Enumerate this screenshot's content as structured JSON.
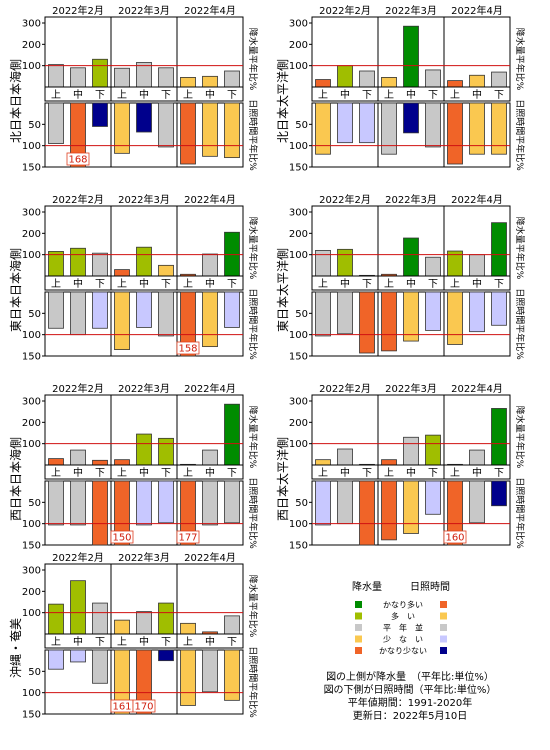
{
  "page": {
    "legend": {
      "header_rain": "降水量",
      "header_sun": "日照時間",
      "rows": [
        {
          "label": "かなり多い",
          "rain_color": "#008c00",
          "sun_color": "#f06428"
        },
        {
          "label": "多　い",
          "rain_color": "#a0be00",
          "sun_color": "#fac850"
        },
        {
          "label": "平　年　並",
          "rain_color": "#c8c8c8",
          "sun_color": "#c8c8c8"
        },
        {
          "label": "少　な　い",
          "rain_color": "#fac850",
          "sun_color": "#c8c8ff"
        },
        {
          "label": "かなり少ない",
          "rain_color": "#f06428",
          "sun_color": "#00008c"
        }
      ]
    },
    "notes": [
      "図の上側が降水量　（平年比:単位%）",
      "図の下側が日照時間（平年比:単位%）",
      "平年値期間：1991-2020年",
      "更新日：2022年5月10日"
    ]
  },
  "chart_data": [
    {
      "type": "bar",
      "region": "北日本日本海側",
      "months": [
        "2022年2月",
        "2022年3月",
        "2022年4月"
      ],
      "categories": [
        "上",
        "中",
        "下",
        "上",
        "中",
        "下",
        "上",
        "中",
        "下"
      ],
      "rain_axis_label": "降水量平年比%",
      "sun_axis_label": "日照時間平年比%",
      "rain_ticks": [
        100,
        200,
        300
      ],
      "sun_ticks": [
        50,
        100,
        150
      ],
      "rain_ylim": [
        0,
        300
      ],
      "sun_ylim": [
        0,
        150
      ],
      "normal_line": 100,
      "rain": [
        {
          "value": 105,
          "color": "#c8c8c8"
        },
        {
          "value": 90,
          "color": "#c8c8c8"
        },
        {
          "value": 130,
          "color": "#a0be00"
        },
        {
          "value": 88,
          "color": "#c8c8c8"
        },
        {
          "value": 115,
          "color": "#c8c8c8"
        },
        {
          "value": 90,
          "color": "#c8c8c8"
        },
        {
          "value": 45,
          "color": "#fac850"
        },
        {
          "value": 50,
          "color": "#fac850"
        },
        {
          "value": 75,
          "color": "#c8c8c8"
        }
      ],
      "sun": [
        {
          "value": 95,
          "color": "#c8c8c8"
        },
        {
          "value": 168,
          "color": "#f06428",
          "label": "168"
        },
        {
          "value": 55,
          "color": "#00008c"
        },
        {
          "value": 118,
          "color": "#fac850"
        },
        {
          "value": 68,
          "color": "#00008c"
        },
        {
          "value": 103,
          "color": "#c8c8c8"
        },
        {
          "value": 143,
          "color": "#f06428"
        },
        {
          "value": 125,
          "color": "#fac850"
        },
        {
          "value": 128,
          "color": "#fac850"
        }
      ]
    },
    {
      "type": "bar",
      "region": "北日本太平洋側",
      "months": [
        "2022年2月",
        "2022年3月",
        "2022年4月"
      ],
      "categories": [
        "上",
        "中",
        "下",
        "上",
        "中",
        "下",
        "上",
        "中",
        "下"
      ],
      "rain_axis_label": "降水量平年比%",
      "sun_axis_label": "日照時間平年比%",
      "rain_ticks": [
        100,
        200,
        300
      ],
      "sun_ticks": [
        50,
        100,
        150
      ],
      "rain_ylim": [
        0,
        300
      ],
      "sun_ylim": [
        0,
        150
      ],
      "normal_line": 100,
      "rain": [
        {
          "value": 35,
          "color": "#f06428"
        },
        {
          "value": 100,
          "color": "#a0be00"
        },
        {
          "value": 75,
          "color": "#c8c8c8"
        },
        {
          "value": 45,
          "color": "#fac850"
        },
        {
          "value": 285,
          "color": "#008c00"
        },
        {
          "value": 80,
          "color": "#c8c8c8"
        },
        {
          "value": 30,
          "color": "#f06428"
        },
        {
          "value": 55,
          "color": "#fac850"
        },
        {
          "value": 70,
          "color": "#c8c8c8"
        }
      ],
      "sun": [
        {
          "value": 120,
          "color": "#fac850"
        },
        {
          "value": 93,
          "color": "#c8c8ff"
        },
        {
          "value": 93,
          "color": "#c8c8ff"
        },
        {
          "value": 120,
          "color": "#c8c8c8"
        },
        {
          "value": 70,
          "color": "#00008c"
        },
        {
          "value": 103,
          "color": "#c8c8c8"
        },
        {
          "value": 143,
          "color": "#f06428"
        },
        {
          "value": 120,
          "color": "#fac850"
        },
        {
          "value": 120,
          "color": "#fac850"
        }
      ]
    },
    {
      "type": "bar",
      "region": "東日本日本海側",
      "months": [
        "2022年2月",
        "2022年3月",
        "2022年4月"
      ],
      "categories": [
        "上",
        "中",
        "下",
        "上",
        "中",
        "下",
        "上",
        "中",
        "下"
      ],
      "rain_axis_label": "降水量平年比%",
      "sun_axis_label": "日照時間平年比%",
      "rain_ticks": [
        100,
        200,
        300
      ],
      "sun_ticks": [
        50,
        100,
        150
      ],
      "rain_ylim": [
        0,
        300
      ],
      "sun_ylim": [
        0,
        150
      ],
      "normal_line": 100,
      "rain": [
        {
          "value": 115,
          "color": "#a0be00"
        },
        {
          "value": 130,
          "color": "#a0be00"
        },
        {
          "value": 107,
          "color": "#c8c8c8"
        },
        {
          "value": 30,
          "color": "#f06428"
        },
        {
          "value": 135,
          "color": "#a0be00"
        },
        {
          "value": 50,
          "color": "#fac850"
        },
        {
          "value": 8,
          "color": "#f06428"
        },
        {
          "value": 103,
          "color": "#c8c8c8"
        },
        {
          "value": 205,
          "color": "#008c00"
        }
      ],
      "sun": [
        {
          "value": 85,
          "color": "#c8c8c8"
        },
        {
          "value": 100,
          "color": "#c8c8c8"
        },
        {
          "value": 85,
          "color": "#c8c8ff"
        },
        {
          "value": 135,
          "color": "#fac850"
        },
        {
          "value": 83,
          "color": "#c8c8ff"
        },
        {
          "value": 103,
          "color": "#c8c8c8"
        },
        {
          "value": 158,
          "color": "#f06428",
          "label": "158"
        },
        {
          "value": 128,
          "color": "#fac850"
        },
        {
          "value": 83,
          "color": "#c8c8ff"
        }
      ]
    },
    {
      "type": "bar",
      "region": "東日本太平洋側",
      "months": [
        "2022年2月",
        "2022年3月",
        "2022年4月"
      ],
      "categories": [
        "上",
        "中",
        "下",
        "上",
        "中",
        "下",
        "上",
        "中",
        "下"
      ],
      "rain_axis_label": "降水量平年比%",
      "sun_axis_label": "日照時間平年比%",
      "rain_ticks": [
        100,
        200,
        300
      ],
      "sun_ticks": [
        50,
        100,
        150
      ],
      "rain_ylim": [
        0,
        300
      ],
      "sun_ylim": [
        0,
        150
      ],
      "normal_line": 100,
      "rain": [
        {
          "value": 120,
          "color": "#c8c8c8"
        },
        {
          "value": 125,
          "color": "#a0be00"
        },
        {
          "value": 3,
          "color": "#f06428"
        },
        {
          "value": 8,
          "color": "#f06428"
        },
        {
          "value": 178,
          "color": "#008c00"
        },
        {
          "value": 88,
          "color": "#c8c8c8"
        },
        {
          "value": 117,
          "color": "#a0be00"
        },
        {
          "value": 100,
          "color": "#c8c8c8"
        },
        {
          "value": 250,
          "color": "#008c00"
        }
      ],
      "sun": [
        {
          "value": 103,
          "color": "#c8c8c8"
        },
        {
          "value": 98,
          "color": "#c8c8c8"
        },
        {
          "value": 143,
          "color": "#f06428"
        },
        {
          "value": 138,
          "color": "#f06428"
        },
        {
          "value": 115,
          "color": "#fac850"
        },
        {
          "value": 90,
          "color": "#c8c8ff"
        },
        {
          "value": 123,
          "color": "#fac850"
        },
        {
          "value": 93,
          "color": "#c8c8ff"
        },
        {
          "value": 78,
          "color": "#c8c8ff"
        }
      ]
    },
    {
      "type": "bar",
      "region": "西日本日本海側",
      "months": [
        "2022年2月",
        "2022年3月",
        "2022年4月"
      ],
      "categories": [
        "上",
        "中",
        "下",
        "上",
        "中",
        "下",
        "上",
        "中",
        "下"
      ],
      "rain_axis_label": "降水量平年比%",
      "sun_axis_label": "日照時間平年比%",
      "rain_ticks": [
        100,
        200,
        300
      ],
      "sun_ticks": [
        50,
        100,
        150
      ],
      "rain_ylim": [
        0,
        300
      ],
      "sun_ylim": [
        0,
        150
      ],
      "normal_line": 100,
      "rain": [
        {
          "value": 30,
          "color": "#f06428"
        },
        {
          "value": 70,
          "color": "#c8c8c8"
        },
        {
          "value": 22,
          "color": "#f06428"
        },
        {
          "value": 25,
          "color": "#f06428"
        },
        {
          "value": 145,
          "color": "#a0be00"
        },
        {
          "value": 125,
          "color": "#a0be00"
        },
        {
          "value": 3,
          "color": "#f06428"
        },
        {
          "value": 70,
          "color": "#c8c8c8"
        },
        {
          "value": 285,
          "color": "#008c00"
        }
      ],
      "sun": [
        {
          "value": 103,
          "color": "#c8c8c8"
        },
        {
          "value": 103,
          "color": "#c8c8c8"
        },
        {
          "value": 150,
          "color": "#f06428"
        },
        {
          "value": 150,
          "color": "#f06428",
          "label": "150"
        },
        {
          "value": 103,
          "color": "#c8c8ff"
        },
        {
          "value": 98,
          "color": "#c8c8ff"
        },
        {
          "value": 177,
          "color": "#f06428",
          "label": "177"
        },
        {
          "value": 103,
          "color": "#c8c8c8"
        },
        {
          "value": 98,
          "color": "#c8c8c8"
        }
      ]
    },
    {
      "type": "bar",
      "region": "西日本太平洋側",
      "months": [
        "2022年2月",
        "2022年3月",
        "2022年4月"
      ],
      "categories": [
        "上",
        "中",
        "下",
        "上",
        "中",
        "下",
        "上",
        "中",
        "下"
      ],
      "rain_axis_label": "降水量平年比%",
      "sun_axis_label": "日照時間平年比%",
      "rain_ticks": [
        100,
        200,
        300
      ],
      "sun_ticks": [
        50,
        100,
        150
      ],
      "rain_ylim": [
        0,
        300
      ],
      "sun_ylim": [
        0,
        150
      ],
      "normal_line": 100,
      "rain": [
        {
          "value": 25,
          "color": "#fac850"
        },
        {
          "value": 75,
          "color": "#c8c8c8"
        },
        {
          "value": 3,
          "color": "#f06428"
        },
        {
          "value": 25,
          "color": "#f06428"
        },
        {
          "value": 130,
          "color": "#c8c8c8"
        },
        {
          "value": 140,
          "color": "#a0be00"
        },
        {
          "value": 3,
          "color": "#f06428"
        },
        {
          "value": 70,
          "color": "#c8c8c8"
        },
        {
          "value": 265,
          "color": "#008c00"
        }
      ],
      "sun": [
        {
          "value": 103,
          "color": "#c8c8ff"
        },
        {
          "value": 100,
          "color": "#c8c8c8"
        },
        {
          "value": 150,
          "color": "#f06428"
        },
        {
          "value": 138,
          "color": "#f06428"
        },
        {
          "value": 123,
          "color": "#fac850"
        },
        {
          "value": 78,
          "color": "#c8c8ff"
        },
        {
          "value": 160,
          "color": "#f06428",
          "label": "160"
        },
        {
          "value": 98,
          "color": "#c8c8c8"
        },
        {
          "value": 58,
          "color": "#00008c"
        }
      ]
    },
    {
      "type": "bar",
      "region": "沖縄・奄美",
      "months": [
        "2022年2月",
        "2022年3月",
        "2022年4月"
      ],
      "categories": [
        "上",
        "中",
        "下",
        "上",
        "中",
        "下",
        "上",
        "中",
        "下"
      ],
      "rain_axis_label": "降水量平年比%",
      "sun_axis_label": "日照時間平年比%",
      "rain_ticks": [
        100,
        200,
        300
      ],
      "sun_ticks": [
        50,
        100,
        150
      ],
      "rain_ylim": [
        0,
        300
      ],
      "sun_ylim": [
        0,
        150
      ],
      "normal_line": 100,
      "rain": [
        {
          "value": 140,
          "color": "#a0be00"
        },
        {
          "value": 250,
          "color": "#a0be00"
        },
        {
          "value": 145,
          "color": "#c8c8c8"
        },
        {
          "value": 65,
          "color": "#fac850"
        },
        {
          "value": 105,
          "color": "#c8c8c8"
        },
        {
          "value": 145,
          "color": "#a0be00"
        },
        {
          "value": 50,
          "color": "#fac850"
        },
        {
          "value": 10,
          "color": "#f06428"
        },
        {
          "value": 85,
          "color": "#c8c8c8"
        }
      ],
      "sun": [
        {
          "value": 45,
          "color": "#c8c8ff"
        },
        {
          "value": 28,
          "color": "#c8c8ff"
        },
        {
          "value": 78,
          "color": "#c8c8c8"
        },
        {
          "value": 161,
          "color": "#fac850",
          "label": "161"
        },
        {
          "value": 170,
          "color": "#f06428",
          "label": "170"
        },
        {
          "value": 25,
          "color": "#00008c"
        },
        {
          "value": 130,
          "color": "#fac850"
        },
        {
          "value": 98,
          "color": "#c8c8c8"
        },
        {
          "value": 118,
          "color": "#fac850"
        }
      ]
    }
  ]
}
